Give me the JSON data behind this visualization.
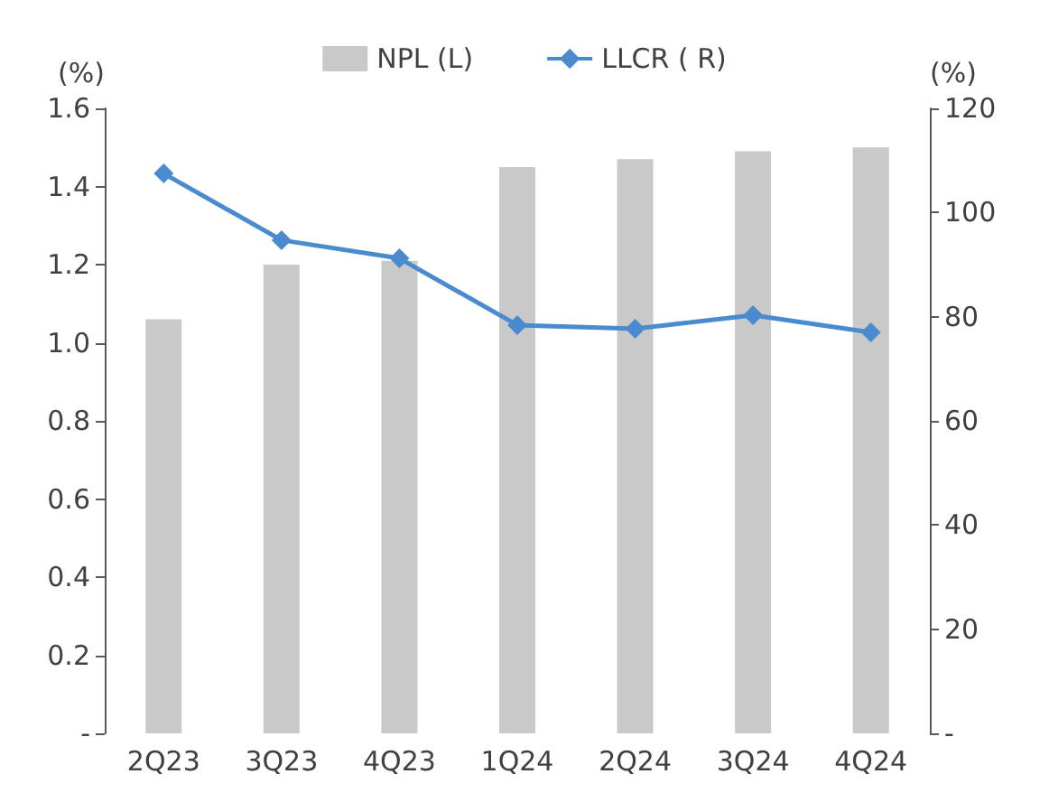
{
  "chart_data": {
    "type": "bar",
    "categories": [
      "2Q23",
      "3Q23",
      "4Q23",
      "1Q24",
      "2Q24",
      "3Q24",
      "4Q24"
    ],
    "series": [
      {
        "name": "NPL (L)",
        "color": "#c9c9c9",
        "values": [
          1.06,
          1.2,
          1.21,
          1.45,
          1.47,
          1.49,
          1.5
        ]
      },
      {
        "name": "LLCR ( R)",
        "type": "line",
        "axis": "y2",
        "color": "#4a8bd0",
        "values": [
          107.5,
          94.7,
          91.2,
          78.4,
          77.7,
          80.3,
          77.0
        ]
      }
    ],
    "ylabel": "(%)",
    "y2label": "(%)",
    "ylim": [
      0,
      1.6
    ],
    "yticks": [
      {
        "value": 0,
        "label": "-"
      },
      {
        "value": 0.2,
        "label": "0.2"
      },
      {
        "value": 0.4,
        "label": "0.4"
      },
      {
        "value": 0.6,
        "label": "0.6"
      },
      {
        "value": 0.8,
        "label": "0.8"
      },
      {
        "value": 1.0,
        "label": "1.0"
      },
      {
        "value": 1.2,
        "label": "1.2"
      },
      {
        "value": 1.4,
        "label": "1.4"
      },
      {
        "value": 1.6,
        "label": "1.6"
      }
    ],
    "y2lim": [
      0,
      120
    ],
    "y2ticks": [
      {
        "value": 0,
        "label": "-"
      },
      20,
      40,
      60,
      80,
      100,
      120
    ],
    "grid": false,
    "legend": "top",
    "marker": "diamond",
    "line_style": "solid"
  }
}
